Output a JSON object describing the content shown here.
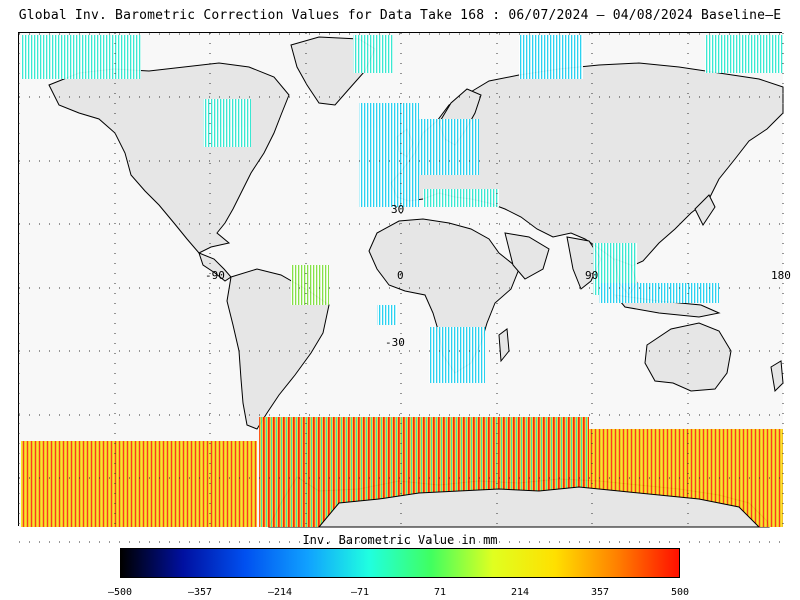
{
  "title": "Global Inv. Barometric Correction Values for Data Take 168 : 06/07/2024 – 04/08/2024 Baseline–E",
  "map": {
    "lon_labels": [
      "-90",
      "0",
      "90",
      "180"
    ],
    "lat_labels": [
      "30",
      "-30"
    ],
    "land_color": "#e6e6e6",
    "ocean_color": "#f8f8f8",
    "grid_style": "dotted"
  },
  "colorbar": {
    "title": "Inv. Barometric Value in mm",
    "ticks": [
      "–500",
      "–357",
      "–214",
      "–71",
      "71",
      "214",
      "357",
      "500"
    ],
    "range": [
      -500,
      500
    ],
    "stops": [
      "#000000",
      "#0010a0",
      "#0050f0",
      "#10a0ff",
      "#20ffe0",
      "#40ff60",
      "#e0ff20",
      "#ffe000",
      "#ff8000",
      "#ff1000"
    ]
  }
}
